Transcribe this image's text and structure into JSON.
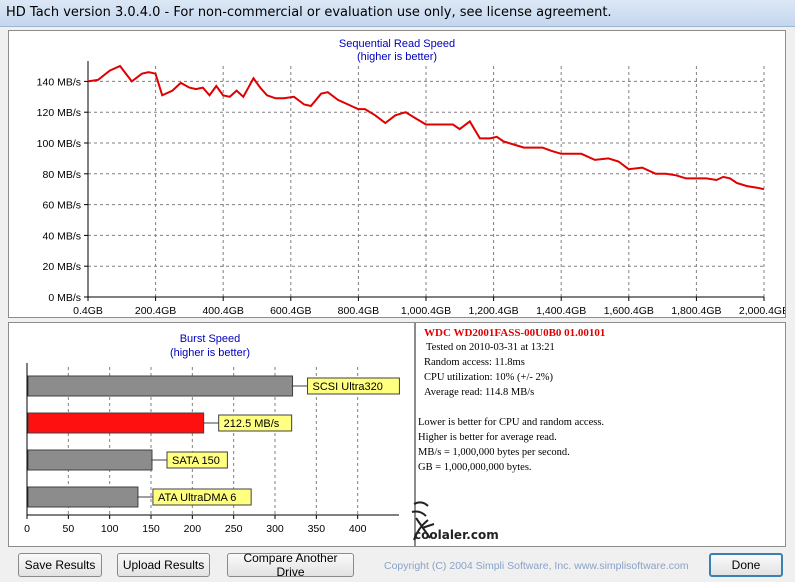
{
  "window": {
    "title": "HD Tach version 3.0.4.0  - For non-commercial or evaluation use only, see license agreement."
  },
  "sequential": {
    "title": "Sequential Read Speed",
    "subtitle": "(higher is better)"
  },
  "burst": {
    "title": "Burst Speed",
    "subtitle": "(higher is better)"
  },
  "info": {
    "drive": "WDC  WD2001FASS-00U0B0 01.00101",
    "tested": "Tested on 2010-03-31 at 13:21",
    "random_access": "Random access: 11.8ms",
    "cpu": "CPU utilization: 10% (+/- 2%)",
    "average_read": "Average read: 114.8 MB/s",
    "note1": "Lower is better for CPU and random access.",
    "note2": "Higher is better for average read.",
    "note3": "MB/s = 1,000,000 bytes per second.",
    "note4": "GB = 1,000,000,000 bytes."
  },
  "watermark": {
    "text": "coolaler.com"
  },
  "buttons": {
    "save": "Save Results",
    "upload": "Upload Results",
    "compare": "Compare Another Drive",
    "done": "Done"
  },
  "copyright": "Copyright (C) 2004 Simpli Software, Inc. www.simplisoftware.com",
  "colors": {
    "series": "#e00000",
    "bar_gray": "#8c8c8c",
    "label_bg": "#ffff80",
    "title_blue": "#0000c0"
  },
  "chart_data": [
    {
      "type": "line",
      "title": "Sequential Read Speed",
      "subtitle": "(higher is better)",
      "xlabel": "",
      "ylabel": "",
      "xlim": [
        0.4,
        2000.4
      ],
      "ylim": [
        0,
        150
      ],
      "x_ticks": [
        "0.4GB",
        "200.4GB",
        "400.4GB",
        "600.4GB",
        "800.4GB",
        "1,000.4GB",
        "1,200.4GB",
        "1,400.4GB",
        "1,600.4GB",
        "1,800.4GB",
        "2,000.4GB"
      ],
      "y_ticks": [
        "0 MB/s",
        "20 MB/s",
        "40 MB/s",
        "60 MB/s",
        "80 MB/s",
        "100 MB/s",
        "120 MB/s",
        "140 MB/s"
      ],
      "grid": true,
      "x": [
        0,
        30,
        65,
        95,
        130,
        160,
        180,
        200,
        220,
        250,
        275,
        300,
        320,
        340,
        360,
        380,
        400,
        420,
        440,
        460,
        490,
        510,
        530,
        555,
        580,
        610,
        640,
        660,
        690,
        710,
        740,
        770,
        800,
        820,
        850,
        880,
        910,
        940,
        970,
        1000,
        1020,
        1050,
        1080,
        1100,
        1130,
        1160,
        1190,
        1210,
        1230,
        1260,
        1290,
        1320,
        1345,
        1370,
        1400,
        1430,
        1460,
        1500,
        1540,
        1570,
        1600,
        1640,
        1680,
        1710,
        1740,
        1770,
        1800,
        1830,
        1860,
        1880,
        1900,
        1920,
        1950,
        1980,
        2000
      ],
      "y": [
        140,
        141,
        147,
        150,
        140,
        145,
        146,
        145,
        131,
        134,
        139,
        136,
        135,
        136,
        131,
        137,
        131,
        130,
        134,
        130,
        142,
        136,
        131,
        129,
        129,
        130,
        125,
        124,
        132,
        133,
        128,
        125,
        122,
        122,
        118,
        113,
        118,
        120,
        116,
        112,
        112,
        112,
        112,
        109,
        114,
        103,
        103,
        104,
        101,
        99,
        97,
        97,
        97,
        95,
        93,
        93,
        93,
        89,
        90,
        88,
        83,
        84,
        80,
        80,
        79,
        77,
        77,
        77,
        76,
        78,
        77,
        74,
        72,
        71,
        70
      ],
      "series": [
        {
          "name": "",
          "color": "#e00000"
        }
      ]
    },
    {
      "type": "bar",
      "title": "Burst Speed",
      "subtitle": "(higher is better)",
      "orientation": "horizontal",
      "categories": [
        "SCSI Ultra320",
        "212.5 MB/s",
        "SATA 150",
        "ATA UltraDMA 6"
      ],
      "values": [
        320,
        212.5,
        150,
        133
      ],
      "bar_colors": [
        "#8c8c8c",
        "#ff1010",
        "#8c8c8c",
        "#8c8c8c"
      ],
      "xlim": [
        0,
        450
      ],
      "x_ticks": [
        "0",
        "50",
        "100",
        "150",
        "200",
        "250",
        "300",
        "350",
        "400"
      ],
      "grid": true
    }
  ]
}
